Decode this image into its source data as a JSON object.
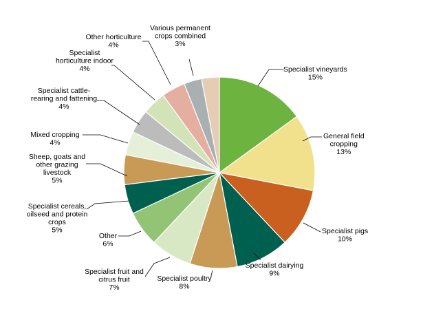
{
  "chart_data": {
    "type": "pie",
    "title": "",
    "slices": [
      {
        "label": [
          "Specialist vineyards"
        ],
        "value_label": "15%",
        "value": 15,
        "color": "#6cb33f"
      },
      {
        "label": [
          "General field",
          "cropping"
        ],
        "value_label": "13%",
        "value": 13,
        "color": "#f2e18c"
      },
      {
        "label": [
          "Specialist pigs"
        ],
        "value_label": "10%",
        "value": 10,
        "color": "#c9601f"
      },
      {
        "label": [
          "Specialist dairying"
        ],
        "value_label": "9%",
        "value": 9,
        "color": "#00604f"
      },
      {
        "label": [
          "Specialist poultry"
        ],
        "value_label": "8%",
        "value": 8,
        "color": "#c89a55"
      },
      {
        "label": [
          "Specialist fruit and",
          "citrus fruit"
        ],
        "value_label": "7%",
        "value": 7,
        "color": "#d9e8c4"
      },
      {
        "label": [
          "Other"
        ],
        "value_label": "6%",
        "value": 6,
        "color": "#93c374"
      },
      {
        "label": [
          "Specialist cereals,",
          "oilseed and protein",
          "crops"
        ],
        "value_label": "5%",
        "value": 5,
        "color": "#00604f"
      },
      {
        "label": [
          "Sheep, goats and",
          "other grazing",
          "livestock"
        ],
        "value_label": "5%",
        "value": 5,
        "color": "#c89a55"
      },
      {
        "label": [
          "Mixed cropping"
        ],
        "value_label": "4%",
        "value": 4,
        "color": "#e6efd8"
      },
      {
        "label": [
          "Specialist cattle-",
          "rearing and fattening"
        ],
        "value_label": "4%",
        "value": 4,
        "color": "#bcbcbc"
      },
      {
        "label": [
          "Specialist",
          "horticulture indoor"
        ],
        "value_label": "4%",
        "value": 4,
        "color": "#d3e3b8"
      },
      {
        "label": [
          "Other horticulture"
        ],
        "value_label": "4%",
        "value": 4,
        "color": "#e4aea0"
      },
      {
        "label": [
          "Various permanent",
          "crops combined"
        ],
        "value_label": "3%",
        "value": 3,
        "color": "#a9b0b2"
      },
      {
        "label": [
          ""
        ],
        "value_label": "",
        "value": 3,
        "color": "#e7ccb4"
      }
    ]
  }
}
